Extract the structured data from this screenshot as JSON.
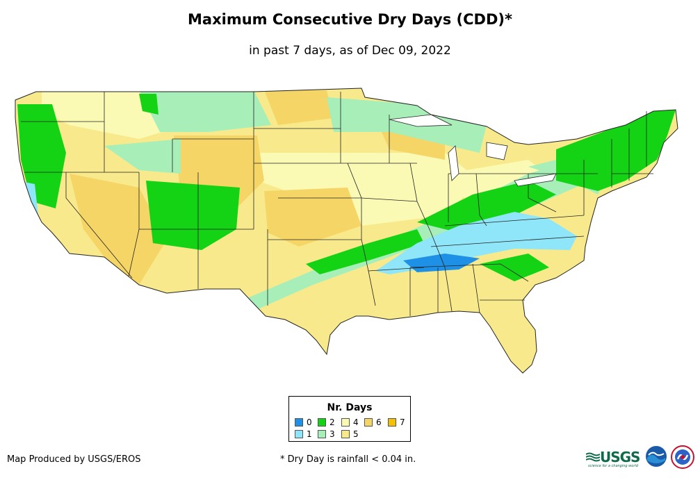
{
  "title": "Maximum Consecutive Dry Days (CDD)*",
  "subtitle": "in past 7 days, as of Dec 09, 2022",
  "legend": {
    "title": "Nr. Days",
    "items": [
      {
        "label": "0",
        "color": "#1e90e6"
      },
      {
        "label": "1",
        "color": "#8ee6f8"
      },
      {
        "label": "2",
        "color": "#14d214"
      },
      {
        "label": "3",
        "color": "#a8eeb8"
      },
      {
        "label": "4",
        "color": "#fafab4"
      },
      {
        "label": "5",
        "color": "#f8ea8c"
      },
      {
        "label": "6",
        "color": "#f5d566"
      },
      {
        "label": "7",
        "color": "#f5c000"
      }
    ]
  },
  "credit": "Map Produced by USGS/EROS",
  "footnote": "* Dry Day is rainfall < 0.04 in.",
  "logos": {
    "usgs_text": "USGS",
    "usgs_tagline": "science for a changing world",
    "noaa_text": "NOAA",
    "nws_text": "NWS"
  }
}
